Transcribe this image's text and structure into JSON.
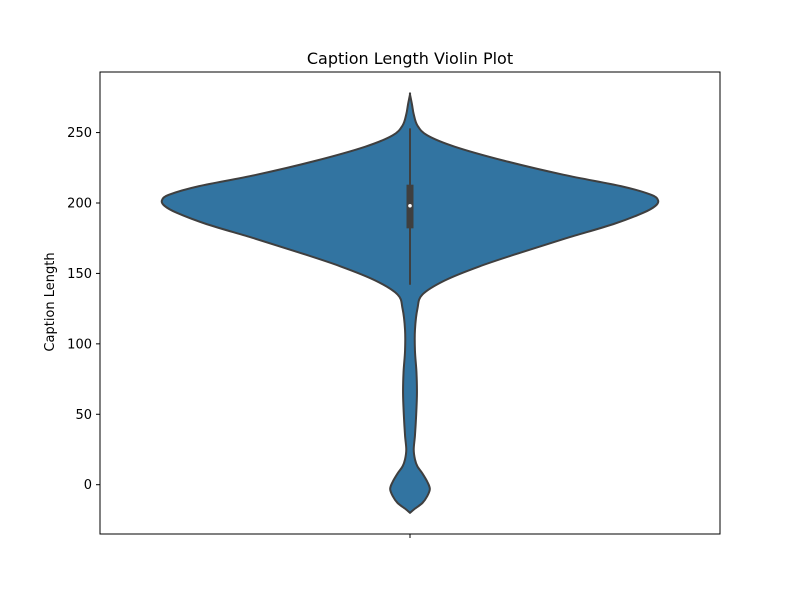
{
  "chart_data": {
    "type": "violin",
    "title": "Caption Length Violin Plot",
    "xlabel": "",
    "ylabel": "Caption Length",
    "ylim": [
      -35,
      293
    ],
    "yticks": [
      0,
      50,
      100,
      150,
      200,
      250
    ],
    "grid": false,
    "legend": "none",
    "color": "#3274a1",
    "edge_color": "#3f3f3f",
    "distribution": {
      "y_min": -20,
      "y_max": 277,
      "density": [
        [
          -20,
          0.0
        ],
        [
          -17,
          0.02
        ],
        [
          -13,
          0.05
        ],
        [
          -8,
          0.07
        ],
        [
          -3,
          0.08
        ],
        [
          2,
          0.07
        ],
        [
          8,
          0.05
        ],
        [
          13,
          0.03
        ],
        [
          18,
          0.02
        ],
        [
          25,
          0.015
        ],
        [
          35,
          0.02
        ],
        [
          50,
          0.025
        ],
        [
          65,
          0.028
        ],
        [
          80,
          0.026
        ],
        [
          95,
          0.02
        ],
        [
          110,
          0.02
        ],
        [
          125,
          0.03
        ],
        [
          135,
          0.05
        ],
        [
          145,
          0.14
        ],
        [
          155,
          0.28
        ],
        [
          165,
          0.45
        ],
        [
          175,
          0.63
        ],
        [
          185,
          0.82
        ],
        [
          193,
          0.94
        ],
        [
          198,
          0.99
        ],
        [
          202,
          1.0
        ],
        [
          206,
          0.97
        ],
        [
          212,
          0.85
        ],
        [
          220,
          0.62
        ],
        [
          230,
          0.38
        ],
        [
          240,
          0.18
        ],
        [
          248,
          0.07
        ],
        [
          255,
          0.03
        ],
        [
          263,
          0.015
        ],
        [
          270,
          0.008
        ],
        [
          277,
          0.0
        ]
      ]
    },
    "box": {
      "q1": 182,
      "median": 198,
      "q3": 213,
      "whisker_low": 142,
      "whisker_high": 253
    }
  }
}
